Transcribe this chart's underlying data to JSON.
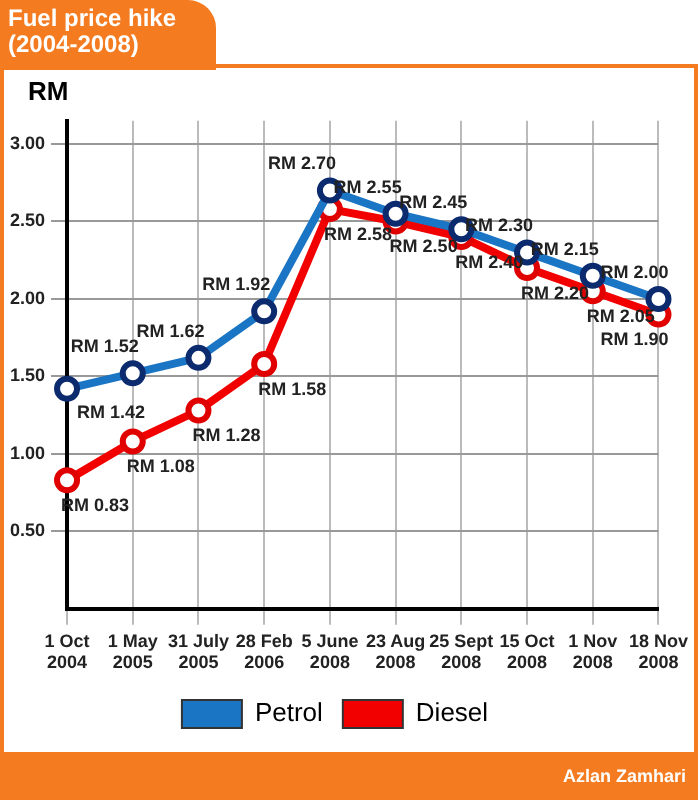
{
  "chart_data": {
    "type": "line",
    "title": "Fuel price hike\n(2004-2008)",
    "ylabel": "RM",
    "categories": [
      "1 Oct 2004",
      "1 May 2005",
      "31 July 2005",
      "28 Feb 2006",
      "5 June 2008",
      "23 Aug 2008",
      "25 Sept 2008",
      "15 Oct 2008",
      "1 Nov 2008",
      "18 Nov 2008"
    ],
    "series": [
      {
        "name": "Petrol",
        "color": "#1a75c4",
        "values": [
          1.42,
          1.52,
          1.62,
          1.92,
          2.7,
          2.55,
          2.45,
          2.3,
          2.15,
          2.0
        ],
        "value_labels": [
          "RM 1.42",
          "RM 1.52",
          "RM 1.62",
          "RM 1.92",
          "RM 2.70",
          "RM 2.55",
          "RM 2.45",
          "RM 2.30",
          "RM 2.15",
          "RM 2.00"
        ]
      },
      {
        "name": "Diesel",
        "color": "#f20000",
        "values": [
          0.83,
          1.08,
          1.28,
          1.58,
          2.58,
          2.5,
          2.4,
          2.2,
          2.05,
          1.9
        ],
        "value_labels": [
          "RM 0.83",
          "RM 1.08",
          "RM 1.28",
          "RM 1.58",
          "RM 2.58",
          "RM 2.50",
          "RM 2.40",
          "RM 2.20",
          "RM 2.05",
          "RM 1.90"
        ]
      }
    ],
    "ylim": [
      0,
      3.15
    ],
    "yticks": [
      {
        "value": 0.5,
        "label": "0.50"
      },
      {
        "value": 1,
        "label": "1.00"
      },
      {
        "value": 1.5,
        "label": "1.50"
      },
      {
        "value": 2,
        "label": "2.00"
      },
      {
        "value": 2.5,
        "label": "2.50"
      },
      {
        "value": 3,
        "label": "3.00"
      }
    ],
    "grid": true,
    "legend": "bottom",
    "marker": "circle",
    "line_style": "solid",
    "annotations": [
      "Azlan Zamhari"
    ]
  }
}
